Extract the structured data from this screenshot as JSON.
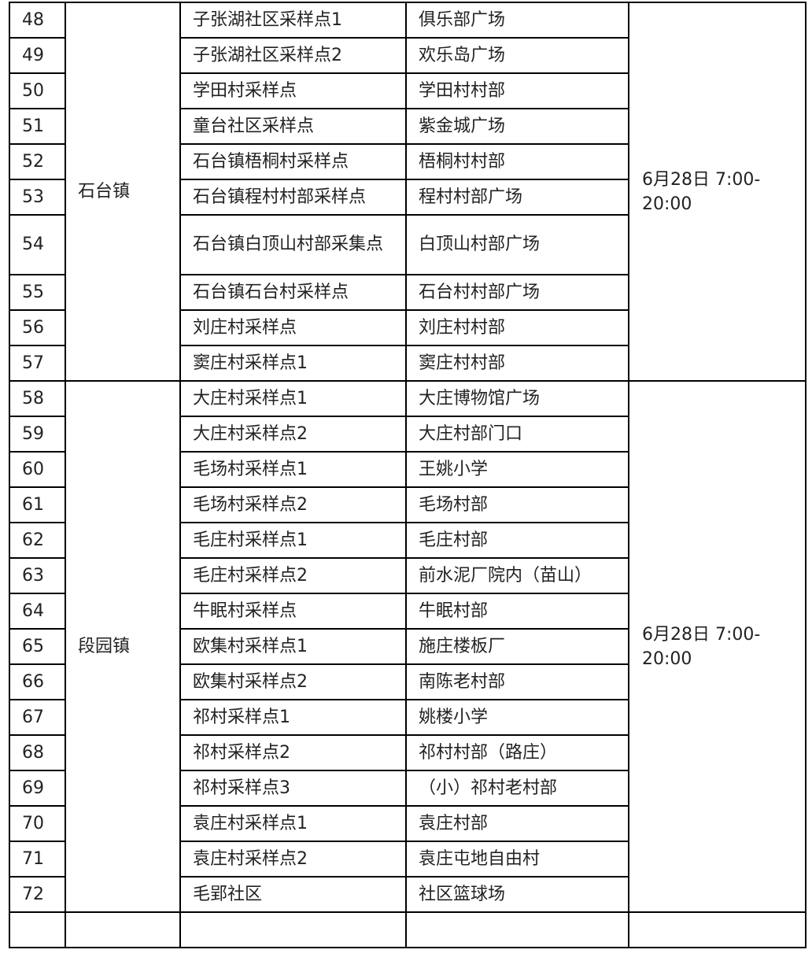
{
  "groups": [
    {
      "town": "石台镇",
      "time": "6月28日 7:00-20:00",
      "rows": [
        {
          "no": "48",
          "site": "子张湖社区采样点1",
          "location": "俱乐部广场"
        },
        {
          "no": "49",
          "site": "子张湖社区采样点2",
          "location": "欢乐岛广场"
        },
        {
          "no": "50",
          "site": "学田村采样点",
          "location": "学田村村部"
        },
        {
          "no": "51",
          "site": "童台社区采样点",
          "location": "紫金城广场"
        },
        {
          "no": "52",
          "site": "石台镇梧桐村采样点",
          "location": "梧桐村村部"
        },
        {
          "no": "53",
          "site": "石台镇程村村部采样点",
          "location": "程村村部广场"
        },
        {
          "no": "54",
          "site": "石台镇白顶山村部采集点",
          "location": "白顶山村部广场"
        },
        {
          "no": "55",
          "site": "石台镇石台村采样点",
          "location": "石台村村部广场"
        },
        {
          "no": "56",
          "site": "刘庄村采样点",
          "location": "刘庄村村部"
        },
        {
          "no": "57",
          "site": "窦庄村采样点1",
          "location": "窦庄村村部"
        }
      ]
    },
    {
      "town": "段园镇",
      "time": "6月28日 7:00-20:00",
      "rows": [
        {
          "no": "58",
          "site": "大庄村采样点1",
          "location": "大庄博物馆广场"
        },
        {
          "no": "59",
          "site": "大庄村采样点2",
          "location": "大庄村部门口"
        },
        {
          "no": "60",
          "site": "毛场村采样点1",
          "location": "王姚小学"
        },
        {
          "no": "61",
          "site": "毛场村采样点2",
          "location": "毛场村部"
        },
        {
          "no": "62",
          "site": "毛庄村采样点1",
          "location": "毛庄村部"
        },
        {
          "no": "63",
          "site": "毛庄村采样点2",
          "location": "前水泥厂院内（苗山）"
        },
        {
          "no": "64",
          "site": "牛眠村采样点",
          "location": "牛眠村部"
        },
        {
          "no": "65",
          "site": "欧集村采样点1",
          "location": "施庄楼板厂"
        },
        {
          "no": "66",
          "site": "欧集村采样点2",
          "location": "南陈老村部"
        },
        {
          "no": "67",
          "site": "祁村采样点1",
          "location": "姚楼小学"
        },
        {
          "no": "68",
          "site": "祁村采样点2",
          "location": "祁村村部（路庄）"
        },
        {
          "no": "69",
          "site": "祁村采样点3",
          "location": "（小）祁村老村部"
        },
        {
          "no": "70",
          "site": "袁庄村采样点1",
          "location": "袁庄村部"
        },
        {
          "no": "71",
          "site": "袁庄村采样点2",
          "location": "袁庄屯地自由村"
        },
        {
          "no": "72",
          "site": "毛郢社区",
          "location": "社区篮球场"
        }
      ]
    }
  ]
}
